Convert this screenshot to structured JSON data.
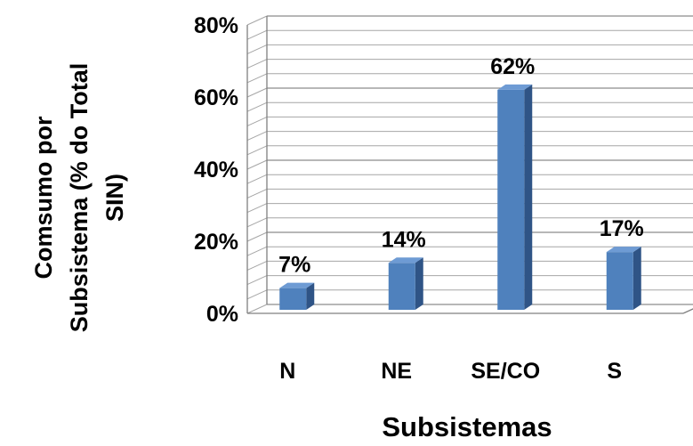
{
  "chart_data": {
    "type": "bar",
    "categories": [
      "N",
      "NE",
      "SE/CO",
      "S"
    ],
    "values": [
      7,
      14,
      62,
      17
    ],
    "data_labels": [
      "7%",
      "14%",
      "62%",
      "17%"
    ],
    "ylim": [
      0,
      80
    ],
    "yticks": [
      0,
      20,
      40,
      60,
      80
    ],
    "ytick_labels": [
      "0%",
      "20%",
      "40%",
      "60%",
      "80%"
    ],
    "ylabel_lines": [
      "Comsumo por",
      "Subsistema (% do Total",
      "SIN)"
    ],
    "xlabel": "Subsistemas",
    "grid": true,
    "style": "3d-column",
    "colors": {
      "bar_front": "#4f81bd",
      "bar_side": "#2f5486",
      "bar_top": "#6e9bd4",
      "grid": "#a6a6a6",
      "axis": "#808080"
    }
  }
}
